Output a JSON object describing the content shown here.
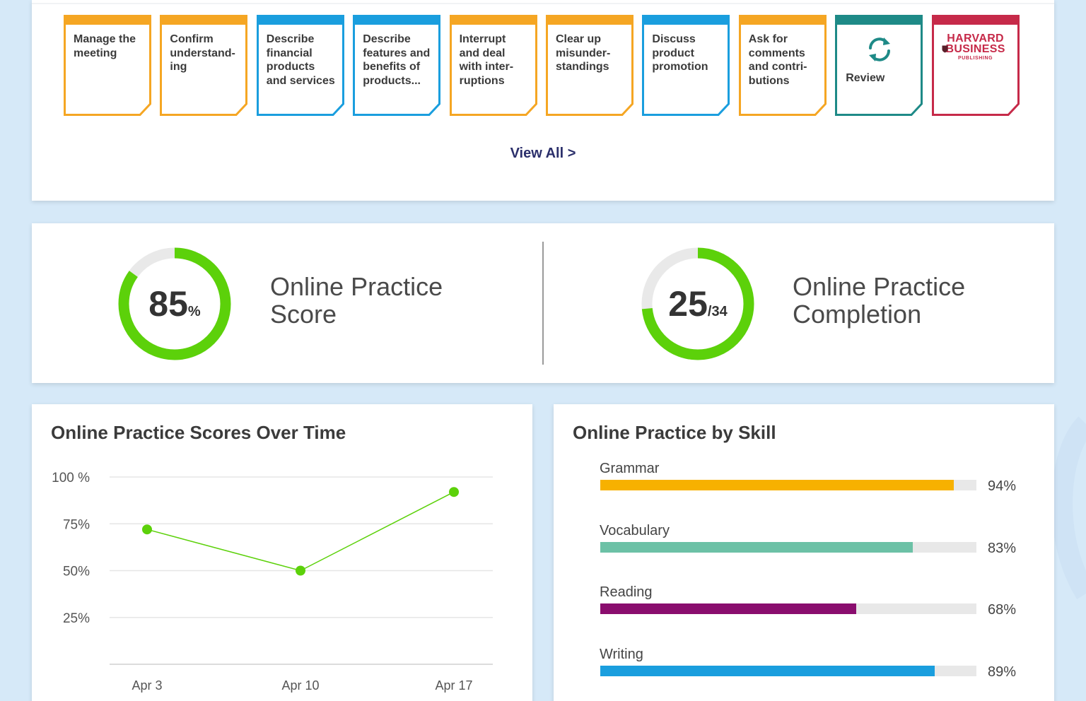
{
  "lessons": {
    "cards": [
      {
        "label": "Manage the meeting",
        "lines": [
          "Manage the",
          "meeting"
        ],
        "color": "#f5a623",
        "type": "lesson"
      },
      {
        "label": "Confirm understanding",
        "lines": [
          "Confirm",
          "understand-",
          "ing"
        ],
        "color": "#f5a623",
        "type": "lesson"
      },
      {
        "label": "Describe financial products and services",
        "lines": [
          "Describe",
          "financial",
          "products",
          "and services"
        ],
        "color": "#1a9ede",
        "type": "lesson"
      },
      {
        "label": "Describe features and benefits of products...",
        "lines": [
          "Describe",
          "features and",
          "benefits of",
          "products..."
        ],
        "color": "#1a9ede",
        "type": "lesson"
      },
      {
        "label": "Interrupt and deal with interruptions",
        "lines": [
          "Interrupt",
          "and deal",
          "with inter-",
          "ruptions"
        ],
        "color": "#f5a623",
        "type": "lesson"
      },
      {
        "label": "Clear up misunderstandings",
        "lines": [
          "Clear up",
          "misunder-",
          "standings"
        ],
        "color": "#f5a623",
        "type": "lesson"
      },
      {
        "label": "Discuss product promotion",
        "lines": [
          "Discuss",
          "product",
          "promotion"
        ],
        "color": "#1a9ede",
        "type": "lesson"
      },
      {
        "label": "Ask for comments and contributions",
        "lines": [
          "Ask for",
          "comments",
          "and contri-",
          "butions"
        ],
        "color": "#f5a623",
        "type": "lesson"
      },
      {
        "label": "Review",
        "lines": [
          "Review"
        ],
        "color": "#1e8a87",
        "type": "review",
        "icon": "refresh-icon"
      },
      {
        "label": "Harvard Business Publishing",
        "lines": [
          "HARVARD",
          "BUSINESS",
          "PUBLISHING"
        ],
        "color": "#c62a49",
        "type": "hbp",
        "icon": "harvard-shield-icon"
      }
    ],
    "view_all": "View All >"
  },
  "progress": {
    "score": {
      "value": "85",
      "unit": "%",
      "fraction": 0.85,
      "title_line1": "Online Practice",
      "title_line2": "Score",
      "color": "#5cd10a"
    },
    "completion": {
      "value": "25",
      "unit": "/34",
      "fraction": 0.735,
      "title_line1": "Online Practice",
      "title_line2": "Completion",
      "color": "#5cd10a"
    }
  },
  "scores_over_time": {
    "title": "Online Practice Scores Over Time"
  },
  "chart_data": {
    "type": "line",
    "title": "Online Practice Scores Over Time",
    "xlabel": "",
    "ylabel": "",
    "x": [
      "Apr 3",
      "Apr 10",
      "Apr 17"
    ],
    "series": [
      {
        "values": [
          72,
          50,
          92
        ],
        "color": "#5cd10a"
      }
    ],
    "ylim": [
      0,
      100
    ],
    "yticks": [
      25,
      50,
      75,
      100
    ],
    "ytick_labels": [
      "25%",
      "50%",
      "75%",
      "100 %"
    ],
    "grid": true
  },
  "skills": {
    "title": "Online Practice by Skill",
    "items": [
      {
        "name": "Grammar",
        "value": 94,
        "label": "94%",
        "color": "#f7b100"
      },
      {
        "name": "Vocabulary",
        "value": 83,
        "label": "83%",
        "color": "#6cc1a6"
      },
      {
        "name": "Reading",
        "value": 68,
        "label": "68%",
        "color": "#8a0d6e"
      },
      {
        "name": "Writing",
        "value": 89,
        "label": "89%",
        "color": "#1a9ede"
      }
    ]
  }
}
